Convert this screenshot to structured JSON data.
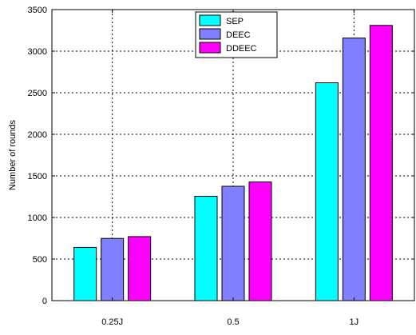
{
  "chart_data": {
    "type": "bar",
    "title": "",
    "xlabel": "",
    "ylabel": "Number of rounds",
    "categories": [
      "0.25J",
      "0.5",
      "1J"
    ],
    "series": [
      {
        "name": "SEP",
        "values": [
          640,
          1255,
          2620
        ],
        "color": "#00ffff"
      },
      {
        "name": "DEEC",
        "values": [
          748,
          1375,
          3158
        ],
        "color": "#7f7fff"
      },
      {
        "name": "DDEEC",
        "values": [
          770,
          1427,
          3310
        ],
        "color": "#ff00ff"
      }
    ],
    "ylim": [
      0,
      3500
    ],
    "yticks": [
      0,
      500,
      1000,
      1500,
      2000,
      2500,
      3000,
      3500
    ],
    "grid": true,
    "legend_position": "top-center"
  }
}
